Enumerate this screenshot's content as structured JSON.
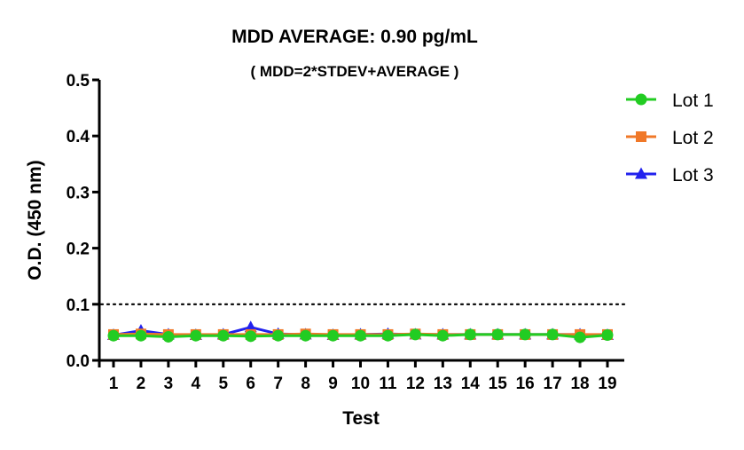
{
  "chart_data": {
    "type": "line",
    "title": "MDD AVERAGE:  0.90 pg/mL",
    "subtitle": "( MDD=2*STDEV+AVERAGE )",
    "xlabel": "Test",
    "ylabel": "O.D. (450 nm)",
    "x": [
      1,
      2,
      3,
      4,
      5,
      6,
      7,
      8,
      9,
      10,
      11,
      12,
      13,
      14,
      15,
      16,
      17,
      18,
      19
    ],
    "ylim": [
      0,
      0.5
    ],
    "yticks": [
      "0.0",
      "0.1",
      "0.2",
      "0.3",
      "0.4",
      "0.5"
    ],
    "reference_line": {
      "y": 0.1,
      "style": "dotted"
    },
    "legend_position": "top-right",
    "grid": false,
    "series": [
      {
        "name": "Lot 1",
        "color": "#22cc22",
        "marker": "circle",
        "values": [
          0.044,
          0.044,
          0.042,
          0.044,
          0.044,
          0.043,
          0.044,
          0.044,
          0.044,
          0.044,
          0.044,
          0.046,
          0.044,
          0.046,
          0.046,
          0.046,
          0.046,
          0.041,
          0.045
        ]
      },
      {
        "name": "Lot 2",
        "color": "#f07828",
        "marker": "square",
        "values": [
          0.046,
          0.047,
          0.046,
          0.046,
          0.046,
          0.046,
          0.046,
          0.047,
          0.046,
          0.046,
          0.046,
          0.047,
          0.046,
          0.046,
          0.046,
          0.046,
          0.046,
          0.046,
          0.046
        ]
      },
      {
        "name": "Lot 3",
        "color": "#2222ee",
        "marker": "triangle",
        "values": [
          0.045,
          0.053,
          0.046,
          0.045,
          0.046,
          0.059,
          0.047,
          0.046,
          0.045,
          0.046,
          0.047,
          0.046,
          0.046,
          0.046,
          0.046,
          0.046,
          0.046,
          0.046,
          0.045
        ]
      }
    ]
  }
}
